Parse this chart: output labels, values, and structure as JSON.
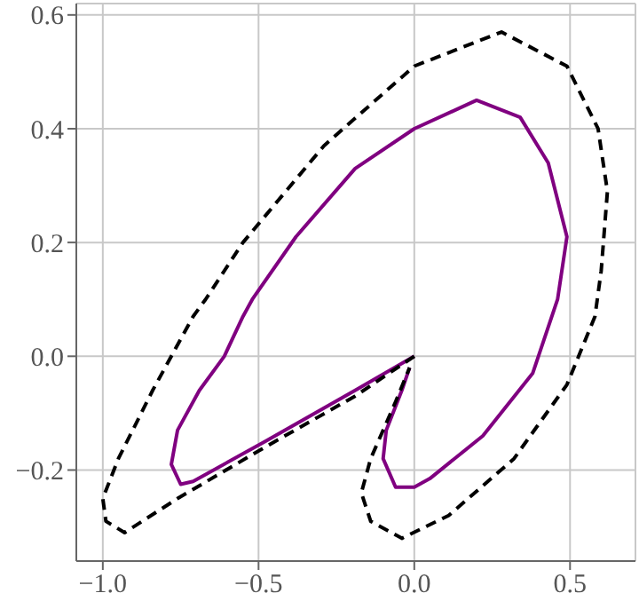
{
  "chart_data": {
    "type": "line",
    "xlim": [
      -1.085,
      0.71
    ],
    "ylim": [
      -0.36,
      0.62
    ],
    "xticks": [
      {
        "value": -1,
        "label": "−1.0"
      },
      {
        "value": -0.5,
        "label": "−0.5"
      },
      {
        "value": 0,
        "label": "0.0"
      },
      {
        "value": 0.5,
        "label": "0.5"
      }
    ],
    "yticks": [
      {
        "value": -0.2,
        "label": "−0.2"
      },
      {
        "value": 0,
        "label": "0.0"
      },
      {
        "value": 0.2,
        "label": "0.2"
      },
      {
        "value": 0.4,
        "label": "0.4"
      },
      {
        "value": 0.6,
        "label": "0.6"
      }
    ],
    "grid": true,
    "marker": "none",
    "series": [
      {
        "color": "#800080",
        "line_style": "solid",
        "x": [
          0,
          -0.19,
          -0.48,
          -0.71,
          -0.75,
          -0.78,
          -0.76,
          -0.69,
          -0.61,
          -0.55,
          -0.52,
          -0.38,
          -0.19,
          0,
          0.2,
          0.34,
          0.43,
          0.49,
          0.46,
          0.38,
          0.22,
          0.05,
          0,
          -0.06,
          -0.1,
          -0.09,
          -0.04,
          -0.015
        ],
        "values": [
          0,
          -0.06,
          -0.15,
          -0.22,
          -0.225,
          -0.19,
          -0.13,
          -0.06,
          0,
          0.07,
          0.1,
          0.21,
          0.33,
          0.4,
          0.45,
          0.42,
          0.34,
          0.21,
          0.1,
          -0.03,
          -0.14,
          -0.215,
          -0.23,
          -0.23,
          -0.18,
          -0.13,
          -0.06,
          -0.02
        ]
      },
      {
        "color": "#000000",
        "line_style": "dashed",
        "x": [
          0,
          -0.19,
          -0.48,
          -0.76,
          -0.93,
          -0.99,
          -1,
          -0.95,
          -0.84,
          -0.71,
          -0.67,
          -0.55,
          -0.29,
          0,
          0.28,
          0.49,
          0.59,
          0.62,
          0.6,
          0.58,
          0.49,
          0.32,
          0.11,
          -0.04,
          -0.14,
          -0.17,
          -0.14,
          -0.06,
          -0.015
        ],
        "values": [
          0,
          -0.07,
          -0.16,
          -0.25,
          -0.31,
          -0.29,
          -0.25,
          -0.18,
          -0.06,
          0.07,
          0.1,
          0.2,
          0.37,
          0.51,
          0.57,
          0.51,
          0.4,
          0.29,
          0.15,
          0.07,
          -0.05,
          -0.18,
          -0.28,
          -0.32,
          -0.29,
          -0.24,
          -0.18,
          -0.08,
          -0.02
        ]
      }
    ]
  }
}
